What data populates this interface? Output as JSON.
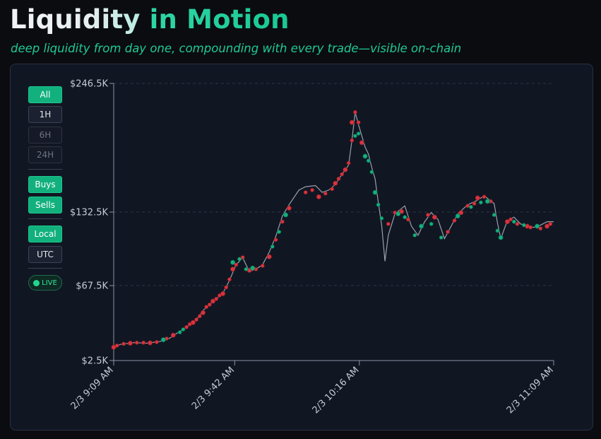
{
  "header": {
    "title_part1": "Liquidity",
    "title_part2": "in Motion",
    "subtitle": "deep liquidity from day one, compounding with every trade—visible on-chain"
  },
  "controls": {
    "range": {
      "all": "All",
      "h1": "1H",
      "h6": "6H",
      "h24": "24H"
    },
    "sides": {
      "buys": "Buys",
      "sells": "Sells"
    },
    "timezone": {
      "local": "Local",
      "utc": "UTC"
    },
    "live": "LIVE"
  },
  "colors": {
    "buy": "#12b07d",
    "sell": "#d7343e",
    "line": "#9aa0aa",
    "accent": "#1fc995"
  },
  "chart_data": {
    "type": "line",
    "x_ticks": [
      "2/3 9:09 AM",
      "2/3 9:42 AM",
      "2/3 10:16 AM",
      "2/3 11:09 AM"
    ],
    "x_range": [
      "2/3 9:09 AM",
      "2/3 11:09 AM"
    ],
    "y_ticks": [
      "$2.5K",
      "$67.5K",
      "$132.5K",
      "$246.5K"
    ],
    "y_tick_values": [
      2500,
      67500,
      132500,
      246500
    ],
    "y_range": [
      2500,
      246500
    ],
    "grid": "horizontal dashed",
    "series": [
      {
        "points": [
          [
            0,
            14000
          ],
          [
            2,
            16500
          ],
          [
            6,
            18000
          ],
          [
            10,
            17500
          ],
          [
            14,
            19000
          ],
          [
            17,
            22000
          ],
          [
            19,
            26000
          ],
          [
            21,
            29500
          ],
          [
            23,
            33500
          ],
          [
            25,
            38000
          ],
          [
            27,
            46000
          ],
          [
            29,
            51000
          ],
          [
            31,
            56000
          ],
          [
            33,
            61000
          ],
          [
            35,
            72000
          ],
          [
            37,
            86000
          ],
          [
            39,
            92000
          ],
          [
            41,
            80000
          ],
          [
            43,
            82000
          ],
          [
            45,
            86000
          ],
          [
            47,
            97000
          ],
          [
            49,
            111000
          ],
          [
            51,
            129000
          ],
          [
            53,
            139000
          ],
          [
            56,
            152000
          ],
          [
            58,
            155000
          ],
          [
            61,
            156000
          ],
          [
            63,
            150000
          ],
          [
            65,
            152000
          ],
          [
            67,
            157000
          ],
          [
            69,
            166000
          ],
          [
            71,
            174000
          ],
          [
            72,
            196000
          ],
          [
            73,
            221000
          ],
          [
            74,
            210000
          ],
          [
            76,
            190000
          ],
          [
            77,
            184000
          ],
          [
            78,
            172000
          ],
          [
            79,
            162000
          ],
          [
            80,
            141000
          ],
          [
            81,
            121000
          ],
          [
            82,
            89000
          ],
          [
            83,
            112000
          ],
          [
            85,
            131000
          ],
          [
            88,
            138000
          ],
          [
            90,
            120000
          ],
          [
            92,
            112000
          ],
          [
            94,
            124000
          ],
          [
            96,
            132000
          ],
          [
            98,
            126000
          ],
          [
            100,
            109000
          ],
          [
            102,
            120000
          ],
          [
            104,
            131000
          ],
          [
            107,
            139000
          ],
          [
            110,
            143000
          ],
          [
            112,
            147000
          ],
          [
            115,
            140000
          ],
          [
            116,
            123000
          ],
          [
            117,
            109000
          ],
          [
            119,
            125000
          ],
          [
            121,
            128000
          ],
          [
            123,
            122000
          ],
          [
            125,
            120000
          ],
          [
            127,
            119000
          ],
          [
            129,
            121000
          ],
          [
            131,
            124000
          ],
          [
            133,
            124000
          ]
        ]
      }
    ],
    "markers": {
      "buys": [
        [
          15,
          20500
        ],
        [
          20,
          27000
        ],
        [
          21,
          29500
        ],
        [
          36,
          88000
        ],
        [
          38,
          91000
        ],
        [
          40,
          82000
        ],
        [
          42,
          83000
        ],
        [
          48,
          102000
        ],
        [
          50,
          115000
        ],
        [
          52,
          130000
        ],
        [
          73,
          200000
        ],
        [
          74,
          202000
        ],
        [
          76,
          182000
        ],
        [
          77,
          178000
        ],
        [
          78,
          168000
        ],
        [
          79,
          150000
        ],
        [
          80,
          139000
        ],
        [
          81,
          127000
        ],
        [
          86,
          131000
        ],
        [
          88,
          128000
        ],
        [
          91,
          112000
        ],
        [
          93,
          120000
        ],
        [
          96,
          122000
        ],
        [
          99,
          110000
        ],
        [
          104,
          129000
        ],
        [
          108,
          137000
        ],
        [
          111,
          141000
        ],
        [
          113,
          142000
        ],
        [
          115,
          130000
        ],
        [
          116,
          116000
        ],
        [
          117,
          110000
        ],
        [
          121,
          124000
        ],
        [
          124,
          121000
        ],
        [
          128,
          120000
        ]
      ],
      "sells": [
        [
          0,
          14000
        ],
        [
          1,
          15500
        ],
        [
          3,
          17000
        ],
        [
          5,
          17500
        ],
        [
          7,
          18000
        ],
        [
          9,
          18000
        ],
        [
          11,
          17800
        ],
        [
          13,
          18500
        ],
        [
          16,
          21500
        ],
        [
          18,
          24500
        ],
        [
          22,
          31500
        ],
        [
          23,
          34000
        ],
        [
          24,
          35500
        ],
        [
          25,
          38000
        ],
        [
          26,
          41000
        ],
        [
          27,
          44000
        ],
        [
          28,
          49000
        ],
        [
          29,
          51000
        ],
        [
          30,
          54000
        ],
        [
          31,
          56000
        ],
        [
          32,
          59000
        ],
        [
          33,
          60500
        ],
        [
          34,
          66000
        ],
        [
          35,
          73000
        ],
        [
          36,
          82000
        ],
        [
          37,
          86000
        ],
        [
          39,
          92500
        ],
        [
          41,
          81000
        ],
        [
          43,
          82000
        ],
        [
          45,
          85000
        ],
        [
          47,
          93000
        ],
        [
          49,
          108000
        ],
        [
          51,
          124000
        ],
        [
          53,
          136000
        ],
        [
          58,
          150000
        ],
        [
          60,
          152000
        ],
        [
          62,
          146000
        ],
        [
          64,
          149000
        ],
        [
          66,
          153000
        ],
        [
          67,
          158000
        ],
        [
          68,
          162000
        ],
        [
          69,
          166000
        ],
        [
          70,
          170000
        ],
        [
          71,
          176000
        ],
        [
          72,
          196000
        ],
        [
          72,
          212000
        ],
        [
          73,
          221000
        ],
        [
          74,
          212000
        ],
        [
          75,
          194000
        ],
        [
          83,
          122000
        ],
        [
          85,
          132000
        ],
        [
          87,
          133000
        ],
        [
          89,
          126000
        ],
        [
          95,
          130000
        ],
        [
          97,
          128000
        ],
        [
          101,
          115000
        ],
        [
          103,
          125000
        ],
        [
          105,
          132000
        ],
        [
          107,
          138000
        ],
        [
          109,
          140000
        ],
        [
          110,
          145000
        ],
        [
          112,
          146000
        ],
        [
          114,
          142000
        ],
        [
          119,
          124000
        ],
        [
          120,
          126000
        ],
        [
          122,
          122000
        ],
        [
          125,
          120000
        ],
        [
          126,
          119000
        ],
        [
          129,
          118000
        ],
        [
          131,
          120000
        ],
        [
          132,
          122000
        ]
      ]
    }
  }
}
